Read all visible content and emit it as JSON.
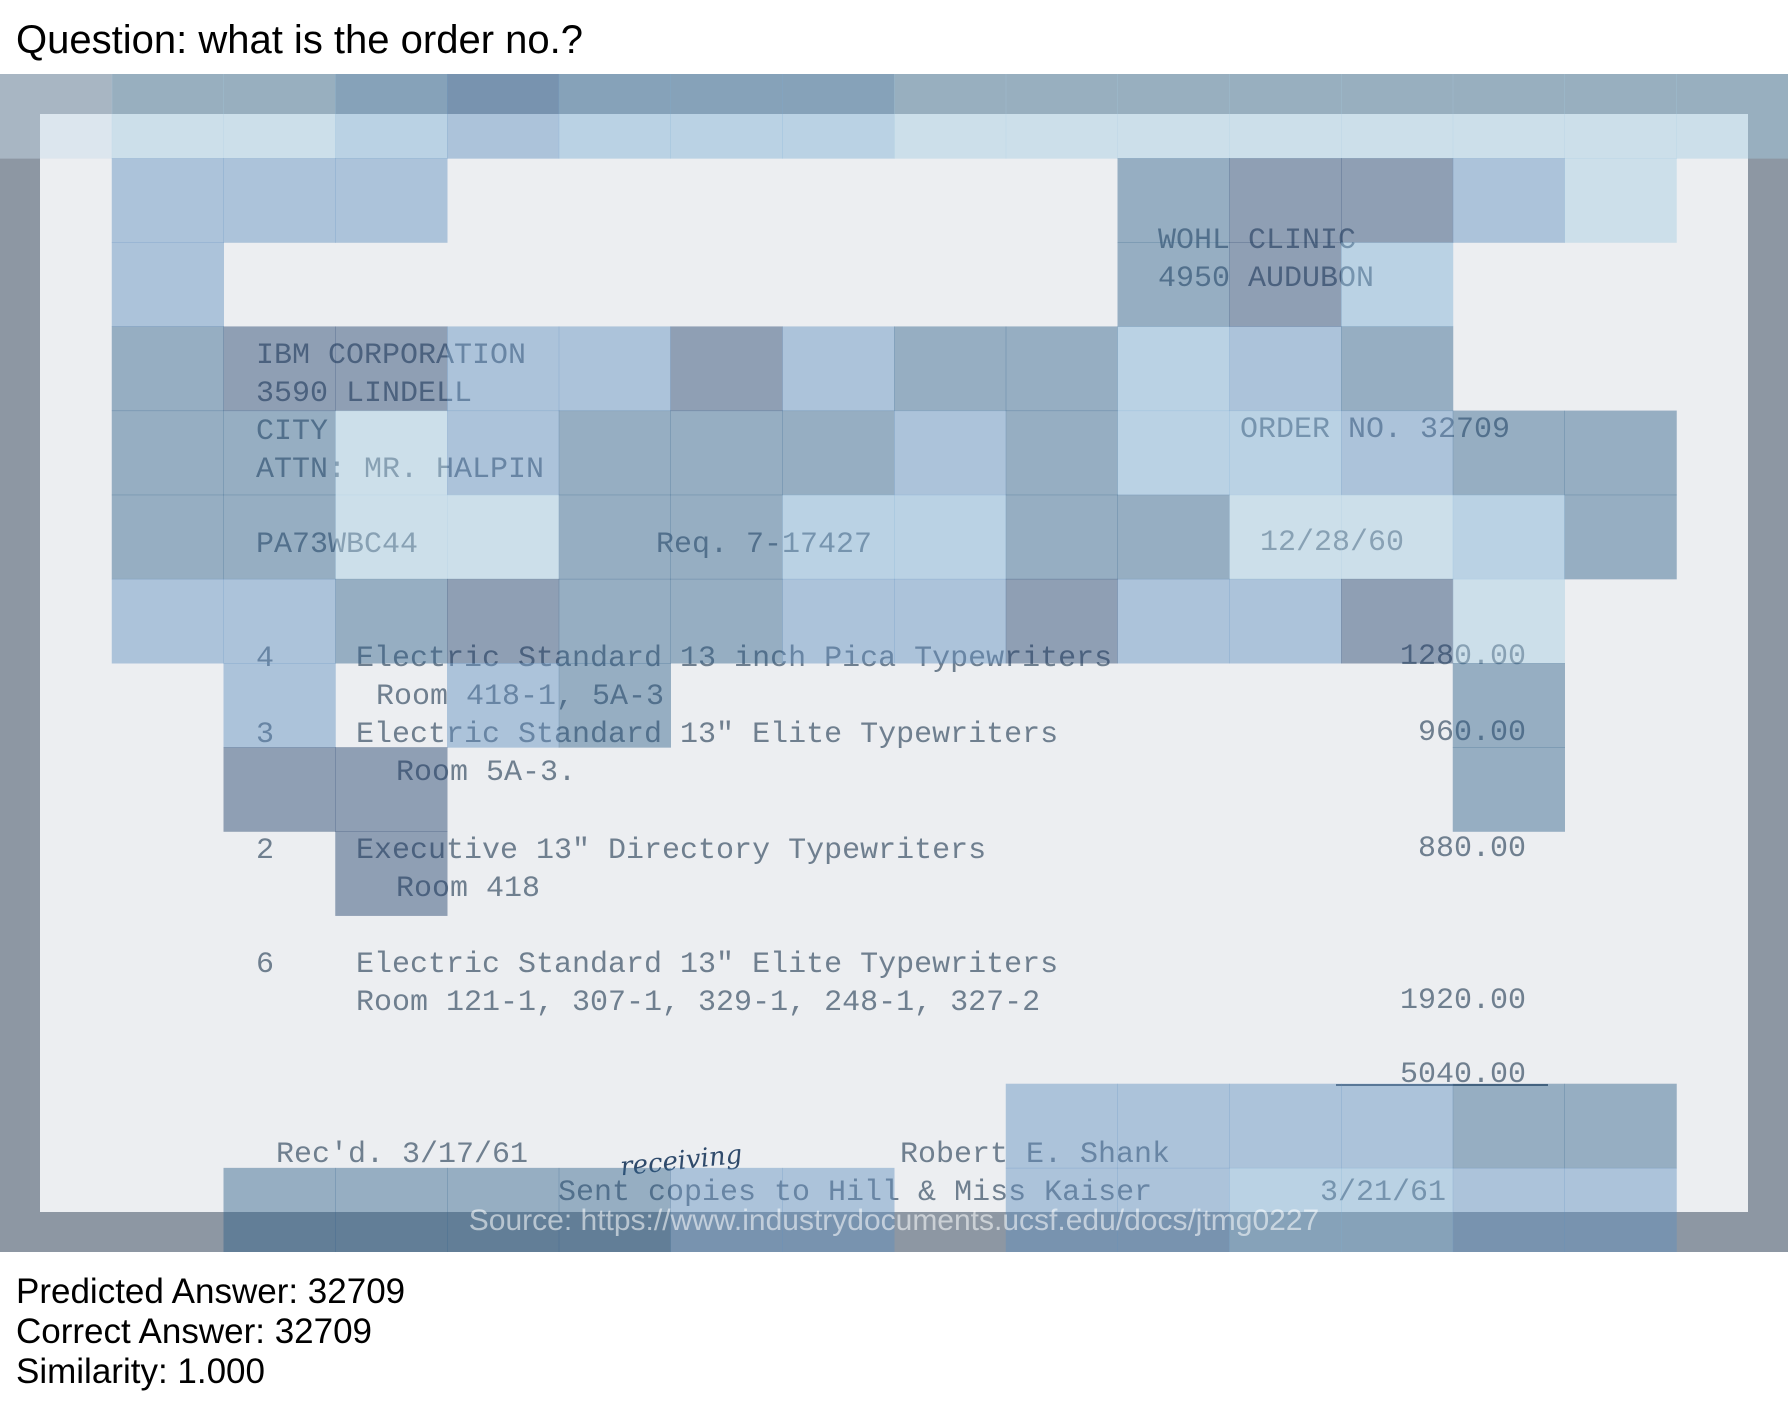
{
  "question": "Question: what is the order no.?",
  "document": {
    "to_header": [
      "WOHL CLINIC",
      "4950 AUDUBON"
    ],
    "vendor": [
      "IBM CORPORATION",
      "3590 LINDELL",
      "CITY",
      "ATTN: MR. HALPIN"
    ],
    "order_no": "ORDER NO. 32709",
    "ref_code": "PA73WBC44",
    "requisition": "Req. 7-17427",
    "order_date": "12/28/60",
    "items": [
      {
        "qty": "4",
        "desc": "Electric Standard 13 inch Pica Typewriters",
        "room": "Room 418-1, 5A-3",
        "amount": "1280.00"
      },
      {
        "qty": "3",
        "desc": "Electric Standard 13\" Elite Typewriters",
        "room": "Room 5A-3.",
        "amount": "960.00"
      },
      {
        "qty": "2",
        "desc": "Executive 13\" Directory Typewriters",
        "room": "Room 418",
        "amount": "880.00"
      },
      {
        "qty": "6",
        "desc": "Electric Standard 13\" Elite Typewriters",
        "room": "Room 121-1, 307-1, 329-1, 248-1, 327-2",
        "amount": "1920.00"
      }
    ],
    "total": "5040.00",
    "received": "Rec'd. 3/17/61",
    "handwritten_note": "receiving",
    "signer": "Robert E. Shank",
    "copies_note": "Sent copies to Hill & Miss Kaiser",
    "copies_date": "3/21/61"
  },
  "source": "Source: https://www.industrydocuments.ucsf.edu/docs/jtmg0227",
  "results": {
    "predicted": "Predicted Answer: 32709",
    "correct": "Correct Answer: 32709",
    "similarity": "Similarity: 1.000"
  },
  "heatmap_palette": [
    "#1f3f6b",
    "#2e5f8a",
    "#5f8fbf",
    "#7fb0d5",
    "#a7cbe2",
    "#c9dcea"
  ]
}
